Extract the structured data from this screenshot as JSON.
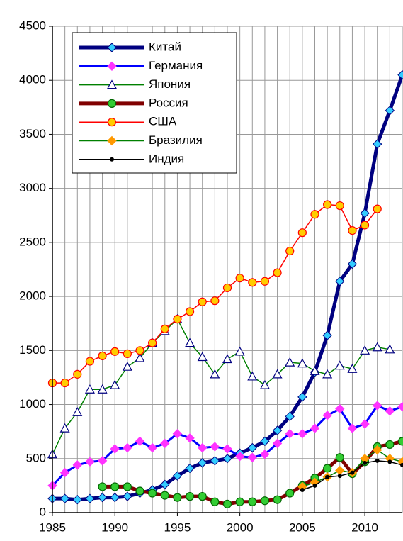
{
  "chart_data": {
    "type": "line",
    "x": [
      1985,
      1986,
      1987,
      1988,
      1989,
      1990,
      1991,
      1992,
      1993,
      1994,
      1995,
      1996,
      1997,
      1998,
      1999,
      2000,
      2001,
      2002,
      2003,
      2004,
      2005,
      2006,
      2007,
      2008,
      2009,
      2010,
      2011,
      2012,
      2013
    ],
    "xlim": [
      1985,
      2013
    ],
    "xticks": [
      1985,
      1990,
      1995,
      2000,
      2005,
      2010
    ],
    "ylim": [
      0,
      4500
    ],
    "yticks": [
      0,
      500,
      1000,
      1500,
      2000,
      2500,
      3000,
      3500,
      4000,
      4500
    ],
    "grid": true,
    "legend": "upper left",
    "series": [
      {
        "name": "Китай",
        "color": "#000080",
        "width": 5,
        "marker": "diamond",
        "marker_color": "#33ccff",
        "values": [
          130,
          130,
          120,
          130,
          140,
          140,
          150,
          180,
          210,
          260,
          340,
          410,
          460,
          480,
          500,
          550,
          600,
          660,
          760,
          890,
          1070,
          1300,
          1640,
          2140,
          2300,
          2770,
          3410,
          3720,
          4050
        ]
      },
      {
        "name": "Германия",
        "color": "#0000ff",
        "width": 3,
        "marker": "diamond",
        "marker_color": "#ff33ff",
        "values": [
          250,
          370,
          440,
          470,
          480,
          590,
          600,
          660,
          600,
          640,
          730,
          690,
          600,
          610,
          590,
          520,
          510,
          540,
          640,
          730,
          730,
          780,
          900,
          960,
          780,
          820,
          990,
          940,
          980
        ]
      },
      {
        "name": "Япония",
        "color": "#008000",
        "width": 1.5,
        "marker": "triangle",
        "marker_color": "#ffffff",
        "values": [
          540,
          780,
          930,
          1140,
          1140,
          1180,
          1350,
          1430,
          1570,
          1680,
          1790,
          1570,
          1440,
          1280,
          1420,
          1490,
          1260,
          1180,
          1280,
          1390,
          1380,
          1310,
          1280,
          1360,
          1330,
          1500,
          1530,
          1510,
          null
        ]
      },
      {
        "name": "Россия",
        "color": "#800000",
        "width": 5,
        "marker": "circle",
        "marker_color": "#33cc33",
        "values": [
          null,
          null,
          null,
          null,
          240,
          240,
          240,
          200,
          180,
          160,
          140,
          150,
          150,
          100,
          80,
          100,
          100,
          110,
          120,
          180,
          250,
          320,
          410,
          510,
          360,
          470,
          610,
          630,
          660
        ]
      },
      {
        "name": "США",
        "color": "#ff0000",
        "width": 1.5,
        "marker": "circle",
        "marker_color": "#ffcc00",
        "values": [
          1200,
          1200,
          1280,
          1400,
          1450,
          1490,
          1470,
          1500,
          1570,
          1700,
          1790,
          1860,
          1950,
          1960,
          2080,
          2170,
          2130,
          2140,
          2220,
          2420,
          2590,
          2760,
          2850,
          2840,
          2610,
          2660,
          2810,
          null,
          null
        ]
      },
      {
        "name": "Бразилия",
        "color": "#008000",
        "width": 1.5,
        "marker": "diamond",
        "marker_color": "#ff9900",
        "values": [
          null,
          null,
          null,
          null,
          null,
          null,
          null,
          null,
          null,
          null,
          null,
          null,
          null,
          null,
          null,
          null,
          null,
          null,
          null,
          null,
          240,
          280,
          330,
          390,
          370,
          500,
          580,
          500,
          470
        ]
      },
      {
        "name": "Индия",
        "color": "#000000",
        "width": 1.5,
        "marker": "dot",
        "marker_color": "#000000",
        "values": [
          null,
          null,
          null,
          null,
          null,
          null,
          null,
          null,
          null,
          null,
          null,
          null,
          null,
          null,
          null,
          null,
          null,
          null,
          null,
          null,
          210,
          250,
          330,
          340,
          370,
          460,
          480,
          470,
          440
        ]
      }
    ]
  }
}
